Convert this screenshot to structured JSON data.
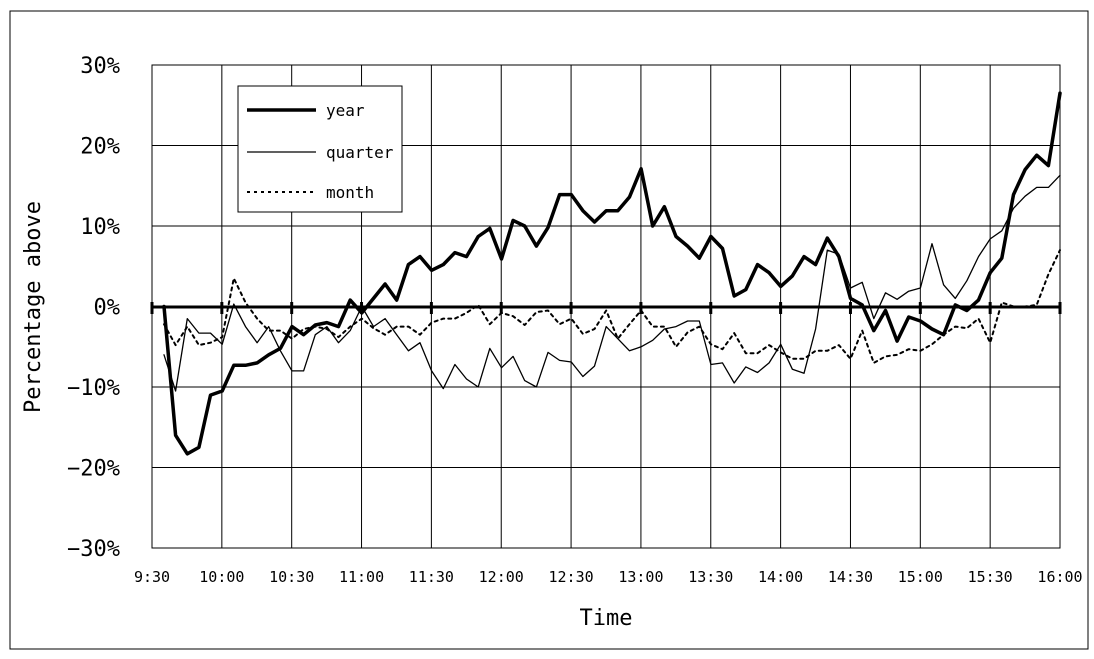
{
  "chart_data": {
    "type": "line",
    "title": "",
    "xlabel": "Time",
    "ylabel": "Percentage above",
    "ylim": [
      -30,
      30
    ],
    "y_ticks": [
      -30,
      -20,
      -10,
      0,
      10,
      20,
      30
    ],
    "y_tick_labels": [
      "−30%",
      "−20%",
      "−10%",
      "0%",
      "10%",
      "20%",
      "30%"
    ],
    "x_tick_labels": [
      "9:30",
      "10:00",
      "10:30",
      "11:00",
      "11:30",
      "12:00",
      "12:30",
      "13:00",
      "13:30",
      "14:00",
      "14:30",
      "15:00",
      "15:30",
      "16:00"
    ],
    "grid": true,
    "legend": "top-left",
    "series": [
      {
        "name": "year",
        "style": "thick",
        "values": [
          0,
          -16,
          -18.3,
          -17.5,
          -11,
          -10.5,
          -7.3,
          -7.3,
          -7,
          -6,
          -5.2,
          -2.5,
          -3.5,
          -2.3,
          -2,
          -2.5,
          0.8,
          -0.8,
          1,
          2.8,
          0.8,
          5.2,
          6.2,
          4.5,
          5.2,
          6.7,
          6.2,
          8.7,
          9.7,
          5.9,
          10.7,
          10,
          7.5,
          9.8,
          13.9,
          13.9,
          11.9,
          10.5,
          11.9,
          11.9,
          13.6,
          17.1,
          10,
          12.4,
          8.7,
          7.5,
          6,
          8.7,
          7.2,
          1.3,
          2.1,
          5.2,
          4.2,
          2.5,
          3.8,
          6.2,
          5.2,
          8.5,
          6.2,
          1,
          0.2,
          -3,
          -0.5,
          -4.3,
          -1.3,
          -1.8,
          -2.8,
          -3.5,
          0.2,
          -0.5,
          0.8,
          4.2,
          6,
          13.9,
          17,
          18.8,
          17.5,
          26.5
        ]
      },
      {
        "name": "quarter",
        "style": "thin",
        "values": [
          -6,
          -10.5,
          -1.5,
          -3.3,
          -3.3,
          -4.7,
          0.3,
          -2.5,
          -4.5,
          -2.5,
          -5.5,
          -8,
          -8,
          -3.5,
          -2.5,
          -4.5,
          -3,
          0,
          -2.5,
          -1.5,
          -3.5,
          -5.5,
          -4.5,
          -8,
          -10.2,
          -7.2,
          -9,
          -10,
          -5.2,
          -7.6,
          -6.2,
          -9.2,
          -10,
          -5.7,
          -6.7,
          -6.9,
          -8.7,
          -7.4,
          -2.5,
          -4,
          -5.5,
          -5,
          -4.2,
          -2.8,
          -2.5,
          -1.8,
          -1.8,
          -7.2,
          -7,
          -9.5,
          -7.5,
          -8.2,
          -7,
          -4.7,
          -7.8,
          -8.3,
          -2.8,
          7,
          6.5,
          2.3,
          3,
          -1.5,
          1.7,
          0.9,
          1.9,
          2.3,
          7.8,
          2.7,
          1,
          3.2,
          6.2,
          8.4,
          9.4,
          12.2,
          13.7,
          14.8,
          14.8,
          16.3
        ]
      },
      {
        "name": "month",
        "style": "dotted",
        "values": [
          -2.2,
          -4.8,
          -2.5,
          -4.8,
          -4.5,
          -3.8,
          3.5,
          0.5,
          -1.5,
          -3,
          -3,
          -4,
          -2.8,
          -2.5,
          -2.8,
          -3.8,
          -2.5,
          -1.5,
          -2.7,
          -3.5,
          -2.5,
          -2.5,
          -3.5,
          -2,
          -1.5,
          -1.5,
          -0.8,
          0.2,
          -2.2,
          -0.8,
          -1.2,
          -2.3,
          -0.7,
          -0.5,
          -2.2,
          -1.5,
          -3.4,
          -2.8,
          -0.5,
          -4,
          -2.2,
          -0.5,
          -2.5,
          -2.5,
          -5,
          -3.2,
          -2.5,
          -4.7,
          -5.3,
          -3.3,
          -5.8,
          -5.8,
          -4.8,
          -5.7,
          -6.5,
          -6.5,
          -5.5,
          -5.5,
          -4.8,
          -6.5,
          -3,
          -7,
          -6.2,
          -6,
          -5.3,
          -5.5,
          -4.7,
          -3.5,
          -2.5,
          -2.7,
          -1.5,
          -4.5,
          0.5,
          0,
          0,
          0.2,
          4,
          7
        ]
      }
    ]
  }
}
